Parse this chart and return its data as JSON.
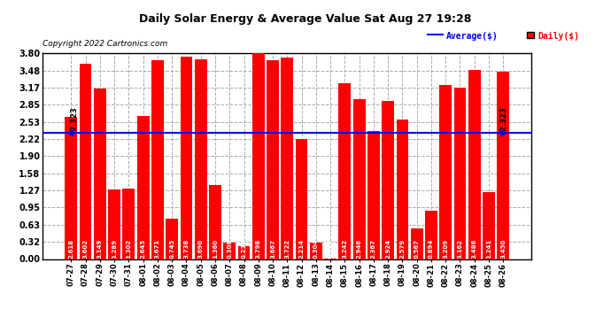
{
  "title": "Daily Solar Energy & Average Value Sat Aug 27 19:28",
  "copyright": "Copyright 2022 Cartronics.com",
  "categories": [
    "07-27",
    "07-28",
    "07-29",
    "07-30",
    "07-31",
    "08-01",
    "08-02",
    "08-03",
    "08-04",
    "08-05",
    "08-06",
    "08-07",
    "08-08",
    "08-09",
    "08-10",
    "08-11",
    "08-12",
    "08-13",
    "08-14",
    "08-15",
    "08-16",
    "08-17",
    "08-18",
    "08-19",
    "08-20",
    "08-21",
    "08-22",
    "08-23",
    "08-24",
    "08-25",
    "08-26"
  ],
  "values": [
    2.618,
    3.602,
    3.149,
    1.289,
    1.302,
    2.645,
    3.671,
    0.745,
    3.738,
    3.69,
    1.36,
    0.308,
    0.235,
    3.798,
    3.667,
    3.722,
    2.214,
    0.304,
    0.009,
    3.242,
    2.946,
    2.367,
    2.924,
    2.579,
    0.567,
    0.894,
    3.209,
    3.162,
    3.486,
    1.241,
    3.45
  ],
  "average": 2.323,
  "bar_color": "#ff0000",
  "average_color": "#0000ff",
  "bg_color": "#ffffff",
  "plot_bg_color": "#ffffff",
  "grid_color": "#aaaaaa",
  "title_color": "#000000",
  "copyright_color": "#000000",
  "legend_avg_color": "#0000ff",
  "legend_daily_color": "#ff0000",
  "ylim": [
    0.0,
    3.8
  ],
  "yticks": [
    0.0,
    0.32,
    0.63,
    0.95,
    1.27,
    1.58,
    1.9,
    2.22,
    2.53,
    2.85,
    3.17,
    3.48,
    3.8
  ]
}
